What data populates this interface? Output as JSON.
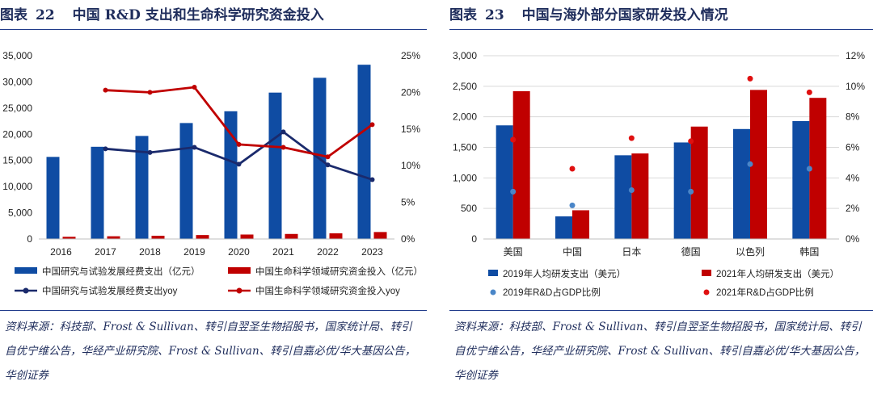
{
  "left": {
    "figure_label": "图表",
    "figure_number": "22",
    "title": "中国 R&D 支出和生命科学研究资金投入",
    "source": "资料来源：科技部、Frost & Sullivan、转引自翌圣生物招股书，国家统计局、转引自优宁维公告，华经产业研究院、Frost & Sullivan、转引自嘉必优/华大基因公告，华创证券",
    "chart_data": {
      "type": "bar",
      "categories": [
        "2016",
        "2017",
        "2018",
        "2019",
        "2020",
        "2021",
        "2022",
        "2023"
      ],
      "y_left_ticks": [
        "0",
        "5,000",
        "10,000",
        "15,000",
        "20,000",
        "25,000",
        "30,000",
        "35,000"
      ],
      "y_right_ticks": [
        "0%",
        "5%",
        "10%",
        "15%",
        "20%",
        "25%"
      ],
      "ylim_left": [
        0,
        35000
      ],
      "ylim_right": [
        0,
        0.25
      ],
      "series": [
        {
          "name": "中国研究与试验发展经费支出（亿元）",
          "type": "bar",
          "axis": "left",
          "color": "#0f4ca3",
          "values": [
            15677,
            17606,
            19678,
            22144,
            24393,
            27956,
            30783,
            33278
          ]
        },
        {
          "name": "中国生命科学领域研究资金投入（亿元）",
          "type": "bar",
          "axis": "left",
          "color": "#c00000",
          "values": [
            420,
            520,
            620,
            750,
            850,
            960,
            1080,
            1330
          ]
        },
        {
          "name": "中国研究与试验发展经费支出yoy",
          "type": "line",
          "axis": "right",
          "color": "#1a2a6c",
          "values": [
            null,
            0.123,
            0.118,
            0.125,
            0.102,
            0.146,
            0.101,
            0.081
          ]
        },
        {
          "name": "中国生命科学领域研究资金投入yoy",
          "type": "line",
          "axis": "right",
          "color": "#c00000",
          "values": [
            null,
            0.203,
            0.2,
            0.207,
            0.129,
            0.125,
            0.112,
            0.156
          ]
        }
      ]
    }
  },
  "right": {
    "figure_label": "图表",
    "figure_number": "23",
    "title": "中国与海外部分国家研发投入情况",
    "source": "资料来源：科技部、Frost & Sullivan、转引自翌圣生物招股书，国家统计局、转引自优宁维公告，华经产业研究院、Frost & Sullivan、转引自嘉必优/华大基因公告，华创证券",
    "chart_data": {
      "type": "bar",
      "categories": [
        "美国",
        "中国",
        "日本",
        "德国",
        "以色列",
        "韩国"
      ],
      "y_left_ticks": [
        "0",
        "500",
        "1,000",
        "1,500",
        "2,000",
        "2,500",
        "3,000"
      ],
      "y_right_ticks": [
        "0%",
        "2%",
        "4%",
        "6%",
        "8%",
        "10%",
        "12%"
      ],
      "ylim_left": [
        0,
        3000
      ],
      "ylim_right": [
        0,
        0.12
      ],
      "series": [
        {
          "name": "2019年人均研发支出（美元）",
          "type": "bar",
          "axis": "left",
          "color": "#0f4ca3",
          "values": [
            1860,
            370,
            1370,
            1580,
            1800,
            1930
          ]
        },
        {
          "name": "2021年人均研发支出（美元）",
          "type": "bar",
          "axis": "left",
          "color": "#c00000",
          "values": [
            2420,
            470,
            1400,
            1840,
            2440,
            2310
          ]
        },
        {
          "name": "2019年R&D占GDP比例",
          "type": "scatter",
          "axis": "right",
          "color": "#4a86c8",
          "values": [
            0.031,
            0.022,
            0.032,
            0.031,
            0.049,
            0.046
          ]
        },
        {
          "name": "2021年R&D占GDP比例",
          "type": "scatter",
          "axis": "right",
          "color": "#e01010",
          "values": [
            0.065,
            0.046,
            0.066,
            0.064,
            0.105,
            0.096
          ]
        }
      ]
    }
  }
}
